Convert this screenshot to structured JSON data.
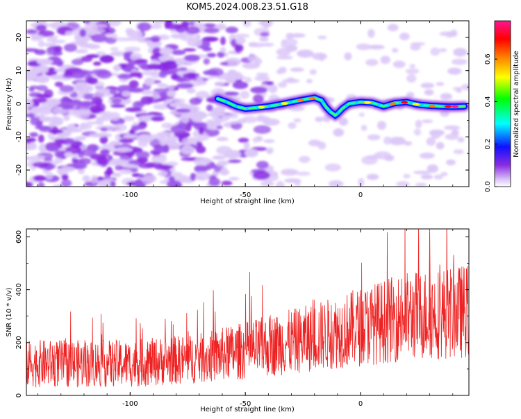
{
  "title": "KOM5.2024.008.23.51.G18",
  "chart_data": [
    {
      "type": "heatmap",
      "xlabel": "Height of straight line (km)",
      "ylabel": "Frequency (Hz)",
      "xlim": [
        -145,
        47
      ],
      "ylim": [
        -25,
        25
      ],
      "xticks": [
        -100,
        -50,
        0
      ],
      "yticks": [
        -20,
        -10,
        0,
        10,
        20
      ],
      "colorbar": {
        "label": "Normalized spectral amplitude",
        "range": [
          0.0,
          0.78
        ],
        "ticks": [
          0.0,
          0.2,
          0.4,
          0.6
        ],
        "colormap": [
          "#ffffff",
          "#dcc8f8",
          "#8a2be2",
          "#1010ff",
          "#00ffff",
          "#00ff00",
          "#ffff00",
          "#ff8000",
          "#ff0000",
          "#ff1493"
        ]
      },
      "ridge": {
        "x_start": -62,
        "x_end": 45,
        "path_x": [
          -62,
          -58,
          -54,
          -50,
          -45,
          -40,
          -35,
          -30,
          -25,
          -20,
          -17,
          -15,
          -13,
          -11,
          -10,
          -8,
          -5,
          0,
          5,
          10,
          15,
          20,
          25,
          30,
          35,
          40,
          45
        ],
        "path_freq": [
          1.5,
          0.5,
          -0.8,
          -1.5,
          -1.2,
          -0.8,
          -0.2,
          0.5,
          1.2,
          1.8,
          1.0,
          -1.0,
          -2.5,
          -3.5,
          -3.0,
          -1.5,
          0,
          0.5,
          0.3,
          -0.8,
          0.2,
          0.5,
          -0.3,
          -0.6,
          -0.8,
          -0.9,
          -0.8
        ]
      }
    },
    {
      "type": "line",
      "xlabel": "Height of straight line (km)",
      "ylabel": "SNR (10 * v/v)",
      "xlim": [
        -145,
        47
      ],
      "ylim": [
        0,
        630
      ],
      "xticks": [
        -100,
        -50,
        0
      ],
      "yticks": [
        0,
        200,
        400,
        600
      ],
      "series": [
        {
          "color": "#ee2222",
          "trend_x": [
            -145,
            -100,
            -70,
            -50,
            -20,
            0,
            20,
            47
          ],
          "trend_y": [
            120,
            120,
            140,
            170,
            220,
            260,
            300,
            320
          ],
          "noise_amplitude": [
            90,
            90,
            95,
            110,
            130,
            150,
            170,
            180
          ],
          "peak_max": 630
        }
      ]
    }
  ]
}
